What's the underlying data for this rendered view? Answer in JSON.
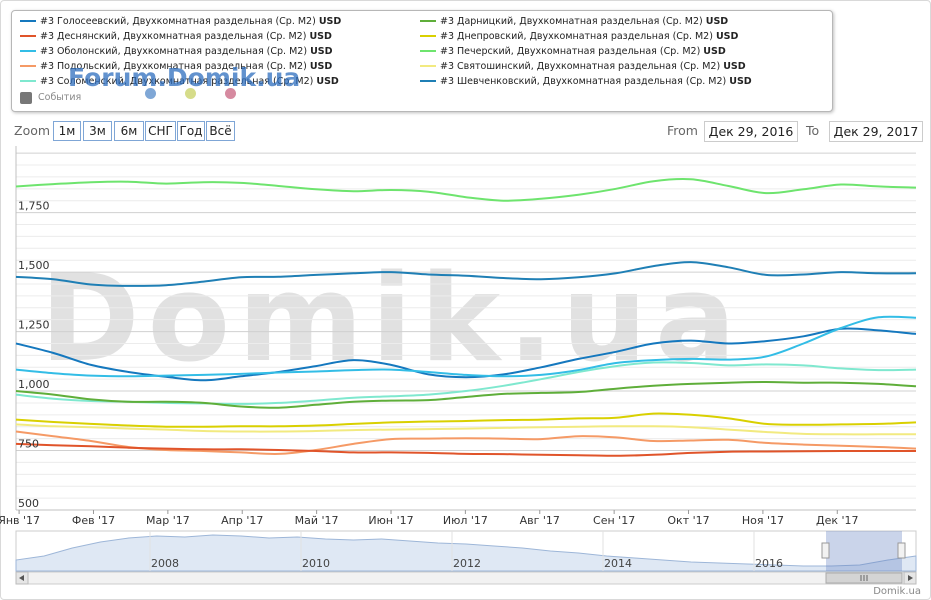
{
  "legend": {
    "items_left": [
      {
        "label": "#3 Голосеевский, Двухкомнатная раздельная (Ср. М2)",
        "unit": "USD",
        "color": "#1578be"
      },
      {
        "label": "#3 Деснянский, Двухкомнатная раздельная (Ср. М2)",
        "unit": "USD",
        "color": "#e0542a"
      },
      {
        "label": "#3 Оболонский, Двухкомнатная раздельная (Ср. М2)",
        "unit": "USD",
        "color": "#33bde6"
      },
      {
        "label": "#3 Подольский, Двухкомнатная раздельная (Ср. М2)",
        "unit": "USD",
        "color": "#f59a66"
      },
      {
        "label": "#3 Соломенский, Двухкомнатная раздельная (Ср. М2)",
        "unit": "USD",
        "color": "#7fe8cf"
      }
    ],
    "items_right": [
      {
        "label": "#3 Дарницкий, Двухкомнатная раздельная (Ср. М2)",
        "unit": "USD",
        "color": "#5fae3a"
      },
      {
        "label": "#3 Днепровский, Двухкомнатная раздельная (Ср. М2)",
        "unit": "USD",
        "color": "#d9d000"
      },
      {
        "label": "#3 Печерский, Двухкомнатная раздельная (Ср. М2)",
        "unit": "USD",
        "color": "#6ee46e"
      },
      {
        "label": "#3 Святошинский, Двухкомнатная раздельная (Ср. М2)",
        "unit": "USD",
        "color": "#f2ea80"
      },
      {
        "label": "#3 Шевченковский, Двухкомнатная раздельная (Ср. М2)",
        "unit": "USD",
        "color": "#1f7fb5"
      }
    ],
    "events_label": "События",
    "watermark": "Forum.Domik.ua",
    "event_dot_colors": [
      "#7fa7d6",
      "#d6dc8a",
      "#d68aa0"
    ]
  },
  "range_selector": {
    "zoom_label": "Zoom",
    "buttons": [
      "1м",
      "3м",
      "6м",
      "СНГ",
      "Год",
      "Всё"
    ],
    "from_label": "From",
    "from_value": "Дек 29, 2016",
    "to_label": "To",
    "to_value": "Дек 29, 2017"
  },
  "watermark_big": "Domik.ua",
  "credit": "Domik.ua",
  "chart_data": {
    "type": "line",
    "x": [
      "Дек 29 2016",
      "Янв 15 2017",
      "Фев 1 2017",
      "Фев 15 2017",
      "Мар 1 2017",
      "Мар 15 2017",
      "Апр 1 2017",
      "Апр 15 2017",
      "Май 1 2017",
      "Май 15 2017",
      "Июн 1 2017",
      "Июн 15 2017",
      "Июл 1 2017",
      "Июл 15 2017",
      "Авг 1 2017",
      "Авг 15 2017",
      "Сен 1 2017",
      "Сен 15 2017",
      "Окт 1 2017",
      "Окт 15 2017",
      "Ноя 1 2017",
      "Ноя 15 2017",
      "Дек 1 2017",
      "Дек 15 2017",
      "Дек 29 2017"
    ],
    "x_tick_labels": [
      "Янв '17",
      "Фев '17",
      "Мар '17",
      "Апр '17",
      "Май '17",
      "Июн '17",
      "Июл '17",
      "Авг '17",
      "Сен '17",
      "Окт '17",
      "Ноя '17",
      "Дек '17"
    ],
    "y_ticks": [
      "500",
      "750",
      "1,000",
      "1,250",
      "1,500",
      "1,750"
    ],
    "ylim": [
      500,
      2030
    ],
    "series": [
      {
        "name": "#3 Печерский, Двухкомнатная раздельная (Ср. М2)",
        "color": "#6ee46e",
        "values": [
          1860,
          1870,
          1878,
          1880,
          1872,
          1878,
          1875,
          1862,
          1848,
          1840,
          1845,
          1838,
          1815,
          1800,
          1808,
          1825,
          1850,
          1882,
          1890,
          1862,
          1832,
          1848,
          1868,
          1860,
          1855
        ]
      },
      {
        "name": "#3 Шевченковский, Двухкомнатная раздельная (Ср. М2)",
        "color": "#1f7fb5",
        "values": [
          1480,
          1470,
          1448,
          1442,
          1445,
          1460,
          1478,
          1480,
          1488,
          1495,
          1500,
          1490,
          1485,
          1475,
          1470,
          1478,
          1495,
          1525,
          1542,
          1520,
          1488,
          1490,
          1500,
          1495,
          1495
        ]
      },
      {
        "name": "#3 Голосеевский, Двухкомнатная раздельная (Ср. М2)",
        "color": "#1578be",
        "values": [
          1200,
          1160,
          1110,
          1080,
          1060,
          1045,
          1062,
          1080,
          1105,
          1130,
          1110,
          1070,
          1058,
          1070,
          1100,
          1135,
          1165,
          1200,
          1212,
          1200,
          1210,
          1230,
          1262,
          1255,
          1240
        ]
      },
      {
        "name": "#3 Оболонский, Двухкомнатная раздельная (Ср. М2)",
        "color": "#33bde6",
        "values": [
          1090,
          1075,
          1065,
          1062,
          1065,
          1068,
          1072,
          1078,
          1082,
          1088,
          1090,
          1080,
          1068,
          1062,
          1068,
          1088,
          1118,
          1130,
          1135,
          1132,
          1145,
          1200,
          1265,
          1310,
          1308
        ]
      },
      {
        "name": "#3 Соломенский, Двухкомнатная раздельная (Ср. М2)",
        "color": "#7fe8cf",
        "values": [
          985,
          968,
          958,
          955,
          950,
          948,
          946,
          950,
          960,
          972,
          978,
          985,
          1000,
          1022,
          1050,
          1080,
          1105,
          1120,
          1118,
          1108,
          1112,
          1108,
          1095,
          1088,
          1090
        ]
      },
      {
        "name": "#3 Дарницкий, Двухкомнатная раздельная (Ср. М2)",
        "color": "#5fae3a",
        "values": [
          1000,
          985,
          965,
          955,
          955,
          950,
          935,
          930,
          942,
          955,
          960,
          962,
          975,
          988,
          992,
          996,
          1010,
          1022,
          1030,
          1035,
          1038,
          1035,
          1035,
          1030,
          1020
        ]
      },
      {
        "name": "#3 Днепровский, Двухкомнатная раздельная (Ср. М2)",
        "color": "#d9d000",
        "values": [
          880,
          870,
          862,
          855,
          850,
          850,
          852,
          852,
          855,
          862,
          868,
          872,
          874,
          878,
          880,
          885,
          888,
          905,
          900,
          885,
          862,
          858,
          860,
          862,
          868
        ]
      },
      {
        "name": "#3 Святошинский, Двухкомнатная раздельная (Ср. М2)",
        "color": "#f2ea80",
        "values": [
          860,
          852,
          848,
          842,
          838,
          832,
          830,
          830,
          832,
          836,
          838,
          840,
          842,
          845,
          848,
          850,
          852,
          852,
          848,
          838,
          828,
          820,
          818,
          818,
          818
        ]
      },
      {
        "name": "#3 Подольский, Двухкомнатная раздельная (Ср. М2)",
        "color": "#f59a66",
        "values": [
          830,
          810,
          790,
          765,
          752,
          748,
          742,
          736,
          752,
          778,
          798,
          800,
          802,
          800,
          798,
          810,
          805,
          790,
          792,
          795,
          782,
          775,
          770,
          765,
          758
        ]
      },
      {
        "name": "#3 Деснянский, Двухкомнатная раздельная (Ср. М2)",
        "color": "#e0542a",
        "values": [
          778,
          772,
          768,
          762,
          758,
          755,
          755,
          752,
          748,
          742,
          742,
          740,
          736,
          735,
          732,
          730,
          728,
          732,
          740,
          745,
          746,
          747,
          748,
          748,
          748
        ]
      }
    ],
    "navigator": {
      "x_tick_labels": [
        "2008",
        "2010",
        "2012",
        "2014",
        "2016"
      ]
    }
  }
}
